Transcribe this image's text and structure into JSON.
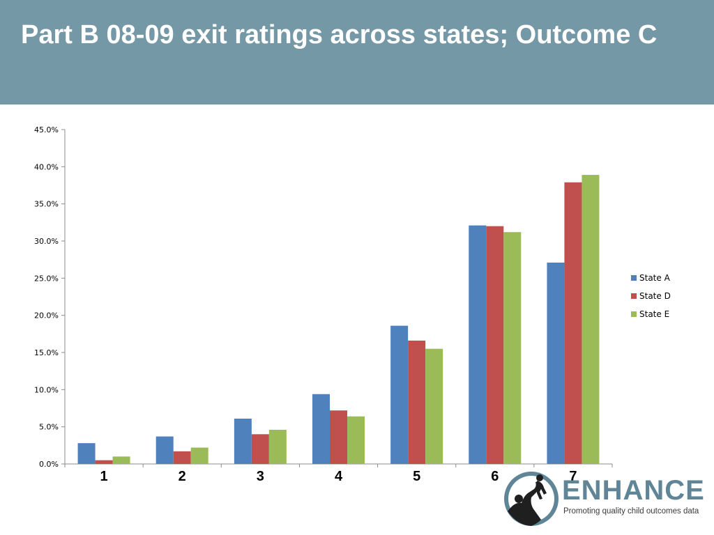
{
  "slide": {
    "title": "Part B 08-09 exit ratings across states; Outcome C"
  },
  "colors": {
    "header_bg": "#7598a6",
    "series": [
      "#4f81bd",
      "#c0504d",
      "#9bbb59"
    ]
  },
  "chart_data": {
    "type": "bar",
    "title": "",
    "xlabel": "",
    "ylabel": "",
    "categories": [
      "1",
      "2",
      "3",
      "4",
      "5",
      "6",
      "7"
    ],
    "series": [
      {
        "name": "State A",
        "values": [
          2.8,
          3.7,
          6.1,
          9.4,
          18.6,
          32.1,
          27.1
        ]
      },
      {
        "name": "State D",
        "values": [
          0.5,
          1.7,
          4.0,
          7.2,
          16.6,
          32.0,
          37.9
        ]
      },
      {
        "name": "State E",
        "values": [
          1.0,
          2.2,
          4.6,
          6.4,
          15.5,
          31.2,
          38.9
        ]
      }
    ],
    "ylim": [
      0,
      45
    ],
    "yticks": [
      "0.0%",
      "5.0%",
      "10.0%",
      "15.0%",
      "20.0%",
      "25.0%",
      "30.0%",
      "35.0%",
      "40.0%",
      "45.0%"
    ],
    "y_tick_step": 5,
    "grid": false,
    "legend_position": "right"
  },
  "logo": {
    "name": "ENHANCE",
    "tagline": "Promoting quality child outcomes data",
    "icon": "parent-lifting-child-icon"
  }
}
